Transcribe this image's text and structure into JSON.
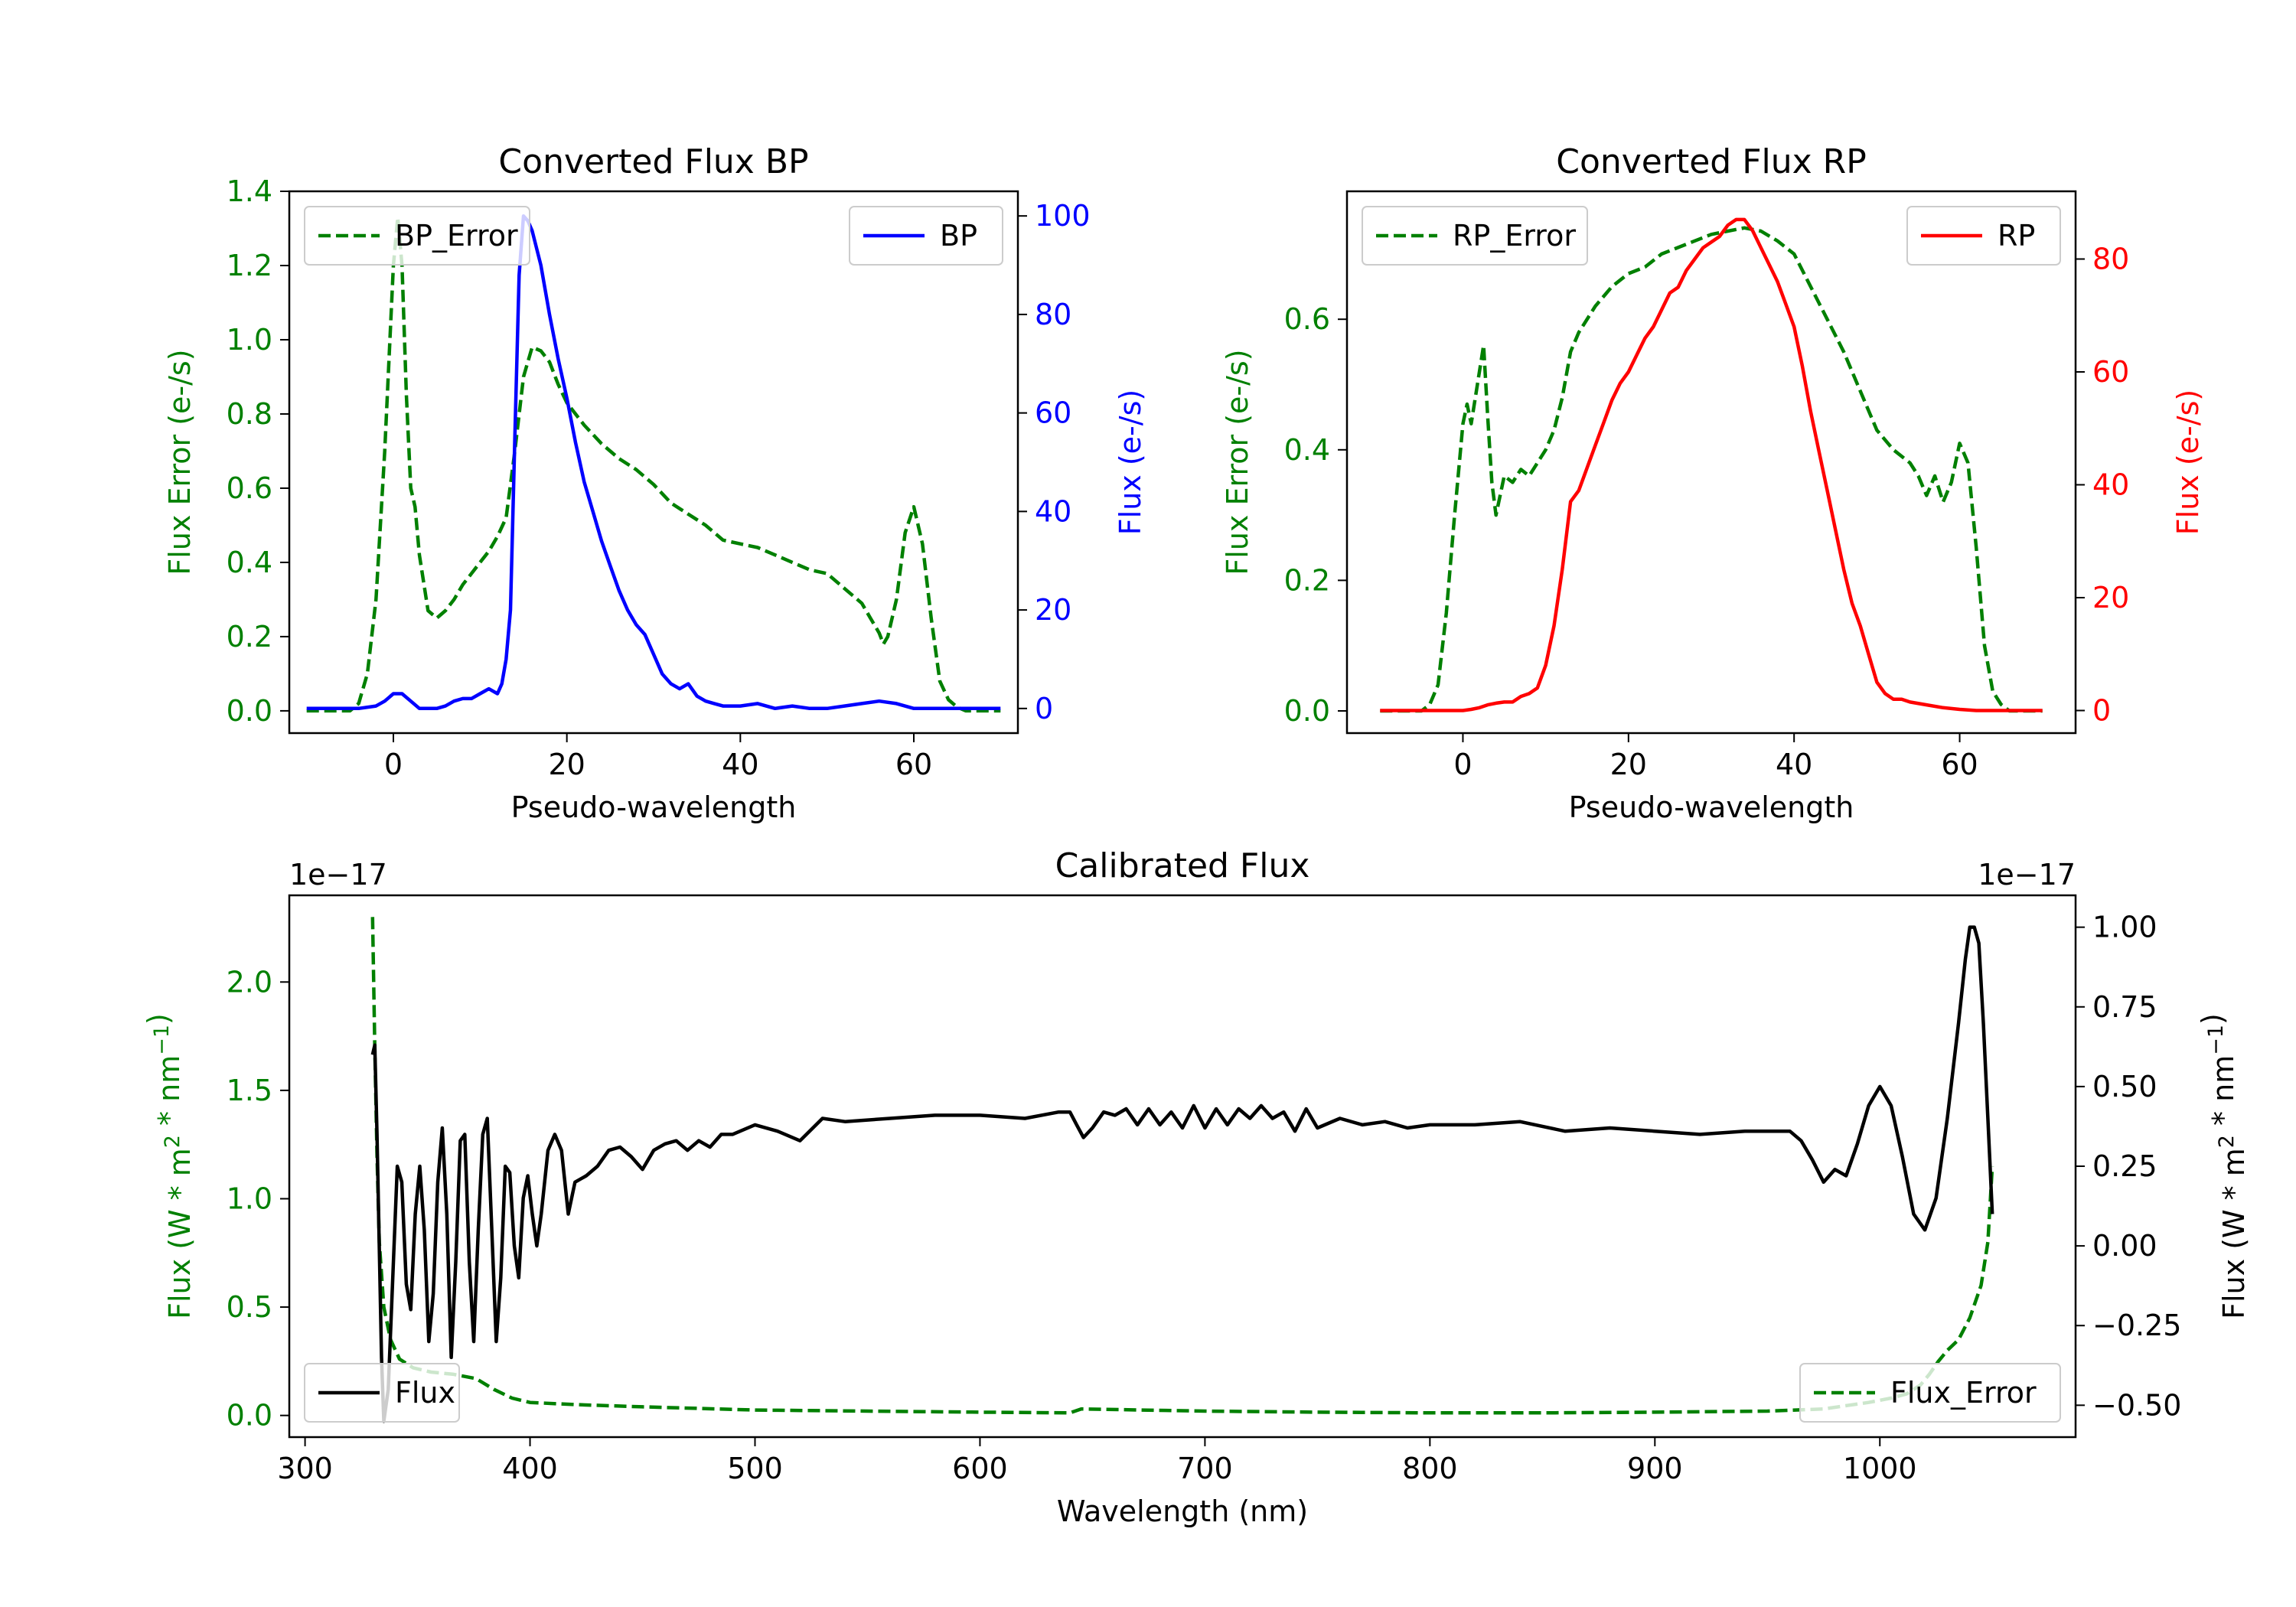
{
  "chart_data": [
    {
      "id": "bp",
      "type": "line",
      "title": "Converted Flux BP",
      "xlabel": "Pseudo-wavelength",
      "ylabel_left": "Flux Error (e-/s)",
      "ylabel_right": "Flux (e-/s)",
      "xlim": [
        -12,
        72
      ],
      "ylim_left": [
        -0.06,
        1.4
      ],
      "ylim_right": [
        -5,
        105
      ],
      "xticks": [
        0,
        20,
        40,
        60
      ],
      "xtick_labels": [
        "0",
        "20",
        "40",
        "60"
      ],
      "yticks_left": [
        0.0,
        0.2,
        0.4,
        0.6,
        0.8,
        1.0,
        1.2,
        1.4
      ],
      "ytick_labels_left": [
        "0.0",
        "0.2",
        "0.4",
        "0.6",
        "0.8",
        "1.0",
        "1.2",
        "1.4"
      ],
      "yticks_right": [
        0,
        20,
        40,
        60,
        80,
        100
      ],
      "ytick_labels_right": [
        "0",
        "20",
        "40",
        "60",
        "80",
        "100"
      ],
      "color_left": "#008000",
      "color_right": "#0000ff",
      "series": [
        {
          "name": "BP_Error",
          "axis": "left",
          "color": "#008000",
          "dash": true,
          "x": [
            -10,
            -5,
            -4,
            -3,
            -2,
            -1,
            0,
            0.5,
            1,
            1.5,
            2,
            2.5,
            3,
            4,
            5,
            6,
            7,
            8,
            9,
            10,
            11,
            12,
            13,
            14,
            15,
            16,
            17,
            18,
            19,
            20,
            22,
            24,
            26,
            28,
            30,
            32,
            34,
            36,
            38,
            40,
            42,
            44,
            46,
            48,
            50,
            52,
            54,
            55,
            56,
            56.5,
            57,
            58,
            59,
            60,
            61,
            62,
            63,
            64,
            65,
            66,
            70
          ],
          "y": [
            0.0,
            0.0,
            0.02,
            0.1,
            0.3,
            0.7,
            1.2,
            1.33,
            1.2,
            0.85,
            0.6,
            0.55,
            0.42,
            0.27,
            0.25,
            0.27,
            0.3,
            0.34,
            0.37,
            0.4,
            0.43,
            0.47,
            0.52,
            0.7,
            0.9,
            0.98,
            0.97,
            0.94,
            0.88,
            0.83,
            0.77,
            0.72,
            0.68,
            0.65,
            0.61,
            0.56,
            0.53,
            0.5,
            0.46,
            0.45,
            0.44,
            0.42,
            0.4,
            0.38,
            0.37,
            0.33,
            0.29,
            0.25,
            0.21,
            0.18,
            0.2,
            0.3,
            0.48,
            0.55,
            0.45,
            0.25,
            0.08,
            0.03,
            0.01,
            0.0,
            0.0
          ]
        },
        {
          "name": "BP",
          "axis": "right",
          "color": "#0000ff",
          "dash": false,
          "x": [
            -10,
            -6,
            -4,
            -2,
            -1,
            0,
            1,
            2,
            3,
            4,
            5,
            6,
            7,
            8,
            9,
            10,
            11,
            12,
            12.5,
            13,
            13.5,
            14,
            14.5,
            15,
            15.5,
            16,
            17,
            18,
            19,
            20,
            21,
            22,
            23,
            24,
            25,
            26,
            27,
            28,
            29,
            30,
            31,
            32,
            33,
            34,
            35,
            36,
            37,
            38,
            39,
            40,
            42,
            44,
            46,
            48,
            50,
            52,
            54,
            56,
            58,
            60,
            62,
            64,
            66,
            68,
            70
          ],
          "y": [
            0,
            0,
            0,
            0.5,
            1.5,
            3,
            3,
            1.5,
            0,
            0,
            0,
            0.5,
            1.5,
            2,
            2,
            3,
            4,
            3,
            5,
            10,
            20,
            55,
            88,
            100,
            99,
            97,
            90,
            80,
            71,
            63,
            54,
            46,
            40,
            34,
            29,
            24,
            20,
            17,
            15,
            11,
            7,
            5,
            4,
            5,
            2.5,
            1.5,
            1,
            0.5,
            0.5,
            0.5,
            1,
            0,
            0.5,
            0,
            0,
            0.5,
            1,
            1.5,
            1,
            0,
            0,
            0,
            0,
            0,
            0
          ]
        }
      ],
      "legend_left": "BP_Error",
      "legend_right": "BP"
    },
    {
      "id": "rp",
      "type": "line",
      "title": "Converted Flux RP",
      "xlabel": "Pseudo-wavelength",
      "ylabel_left": "Flux Error (e-/s)",
      "ylabel_right": "Flux (e-/s)",
      "xlim": [
        -14,
        74
      ],
      "ylim_left": [
        -0.034,
        0.796
      ],
      "ylim_right": [
        -4,
        92
      ],
      "xticks": [
        0,
        20,
        40,
        60
      ],
      "xtick_labels": [
        "0",
        "20",
        "40",
        "60"
      ],
      "yticks_left": [
        0.0,
        0.2,
        0.4,
        0.6
      ],
      "ytick_labels_left": [
        "0.0",
        "0.2",
        "0.4",
        "0.6"
      ],
      "yticks_right": [
        0,
        20,
        40,
        60,
        80
      ],
      "ytick_labels_right": [
        "0",
        "20",
        "40",
        "60",
        "80"
      ],
      "color_left": "#008000",
      "color_right": "#ff0000",
      "series": [
        {
          "name": "RP_Error",
          "axis": "left",
          "color": "#008000",
          "dash": true,
          "x": [
            -10,
            -5,
            -4,
            -3,
            -2,
            -1,
            0,
            0.5,
            1,
            1.5,
            2,
            2.5,
            3,
            3.5,
            4,
            5,
            6,
            7,
            8,
            9,
            10,
            11,
            12,
            13,
            14,
            16,
            18,
            20,
            22,
            24,
            26,
            28,
            30,
            32,
            34,
            36,
            38,
            40,
            42,
            44,
            46,
            48,
            50,
            52,
            54,
            55,
            56,
            57,
            58,
            59,
            60,
            61,
            62,
            63,
            64,
            65,
            66,
            70
          ],
          "y": [
            0.0,
            0.0,
            0.01,
            0.04,
            0.15,
            0.3,
            0.44,
            0.47,
            0.44,
            0.48,
            0.52,
            0.56,
            0.45,
            0.35,
            0.3,
            0.36,
            0.35,
            0.37,
            0.36,
            0.38,
            0.4,
            0.43,
            0.48,
            0.55,
            0.58,
            0.62,
            0.65,
            0.67,
            0.68,
            0.7,
            0.71,
            0.72,
            0.73,
            0.735,
            0.74,
            0.735,
            0.72,
            0.7,
            0.65,
            0.6,
            0.55,
            0.49,
            0.43,
            0.4,
            0.38,
            0.36,
            0.33,
            0.36,
            0.32,
            0.35,
            0.41,
            0.38,
            0.25,
            0.1,
            0.03,
            0.01,
            0.0,
            0.0
          ]
        },
        {
          "name": "RP",
          "axis": "right",
          "color": "#ff0000",
          "dash": false,
          "x": [
            -10,
            -2,
            0,
            1,
            2,
            3,
            4,
            5,
            6,
            7,
            8,
            9,
            10,
            11,
            12,
            13,
            14,
            15,
            16,
            17,
            18,
            19,
            20,
            21,
            22,
            23,
            24,
            25,
            26,
            27,
            28,
            29,
            30,
            31,
            32,
            33,
            34,
            35,
            36,
            37,
            38,
            39,
            40,
            41,
            42,
            43,
            44,
            45,
            46,
            47,
            48,
            49,
            50,
            51,
            52,
            53,
            54,
            56,
            58,
            60,
            62,
            64,
            66,
            70
          ],
          "y": [
            0,
            0,
            0,
            0.2,
            0.5,
            1,
            1.3,
            1.5,
            1.5,
            2.5,
            3,
            4,
            8,
            15,
            25,
            37,
            39,
            43,
            47,
            51,
            55,
            58,
            60,
            63,
            66,
            68,
            71,
            74,
            75,
            78,
            80,
            82,
            83,
            84,
            86,
            87,
            87,
            85,
            82,
            79,
            76,
            72,
            68,
            61,
            53,
            46,
            39,
            32,
            25,
            19,
            15,
            10,
            5,
            3,
            2,
            2,
            1.5,
            1,
            0.5,
            0.2,
            0,
            0,
            0,
            0
          ]
        }
      ],
      "legend_left": "RP_Error",
      "legend_right": "RP"
    },
    {
      "id": "cal",
      "type": "line",
      "title": "Calibrated Flux",
      "xlabel": "Wavelength (nm)",
      "ylabel_left": "Flux (W * m² * nm⁻¹)",
      "ylabel_right": "Flux (W * m² * nm⁻¹)",
      "ylabel_left_main": "Flux (W * m",
      "ylabel_left_sup1": "2",
      "ylabel_left_mid": " * nm",
      "ylabel_left_sup2": "−1",
      "ylabel_left_end": ")",
      "xlim": [
        293,
        1087
      ],
      "ylim_left": [
        -0.1,
        2.4
      ],
      "ylim_right": [
        -0.6,
        1.1
      ],
      "offset_left": "1e−17",
      "offset_right": "1e−17",
      "xticks": [
        300,
        400,
        500,
        600,
        700,
        800,
        900,
        1000
      ],
      "xtick_labels": [
        "300",
        "400",
        "500",
        "600",
        "700",
        "800",
        "900",
        "1000"
      ],
      "yticks_left": [
        0.0,
        0.5,
        1.0,
        1.5,
        2.0
      ],
      "ytick_labels_left": [
        "0.0",
        "0.5",
        "1.0",
        "1.5",
        "2.0"
      ],
      "yticks_right": [
        -0.5,
        -0.25,
        0.0,
        0.25,
        0.5,
        0.75,
        1.0
      ],
      "ytick_labels_right": [
        "−0.50",
        "−0.25",
        "0.00",
        "0.25",
        "0.50",
        "0.75",
        "1.00"
      ],
      "color_left": "#008000",
      "color_right": "#000000",
      "series": [
        {
          "name": "Flux_Error",
          "axis": "left",
          "color": "#008000",
          "dash": true,
          "x": [
            330,
            331,
            332,
            333,
            335,
            338,
            342,
            348,
            356,
            366,
            376,
            384,
            392,
            400,
            420,
            450,
            500,
            550,
            600,
            640,
            645,
            700,
            750,
            800,
            850,
            900,
            950,
            975,
            985,
            995,
            1005,
            1012,
            1018,
            1022,
            1026,
            1030,
            1035,
            1040,
            1045,
            1048,
            1050
          ],
          "y": [
            2.3,
            1.7,
            1.2,
            0.8,
            0.5,
            0.35,
            0.26,
            0.22,
            0.2,
            0.19,
            0.17,
            0.12,
            0.08,
            0.06,
            0.05,
            0.04,
            0.025,
            0.02,
            0.015,
            0.012,
            0.03,
            0.02,
            0.015,
            0.012,
            0.012,
            0.015,
            0.02,
            0.03,
            0.045,
            0.06,
            0.08,
            0.1,
            0.14,
            0.19,
            0.25,
            0.3,
            0.35,
            0.45,
            0.6,
            0.8,
            1.15
          ]
        },
        {
          "name": "Flux",
          "axis": "right",
          "color": "#000000",
          "dash": false,
          "x": [
            330,
            331,
            332,
            334,
            335,
            337,
            339,
            341,
            343,
            345,
            347,
            349,
            351,
            353,
            355,
            357,
            359,
            361,
            363,
            365,
            367,
            369,
            371,
            373,
            375,
            377,
            379,
            381,
            383,
            385,
            387,
            389,
            391,
            393,
            395,
            397,
            399,
            401,
            403,
            405,
            408,
            411,
            414,
            417,
            420,
            425,
            430,
            435,
            440,
            445,
            450,
            455,
            460,
            465,
            470,
            475,
            480,
            485,
            490,
            500,
            510,
            520,
            530,
            540,
            560,
            580,
            600,
            620,
            635,
            640,
            643,
            646,
            650,
            655,
            660,
            665,
            670,
            675,
            680,
            685,
            690,
            695,
            700,
            705,
            710,
            715,
            720,
            725,
            730,
            735,
            740,
            745,
            750,
            760,
            770,
            780,
            790,
            800,
            820,
            840,
            860,
            880,
            900,
            920,
            940,
            950,
            955,
            960,
            965,
            970,
            975,
            980,
            985,
            990,
            995,
            1000,
            1005,
            1010,
            1015,
            1020,
            1025,
            1030,
            1035,
            1038,
            1040,
            1042,
            1044,
            1046,
            1048,
            1050
          ],
          "y": [
            0.6,
            0.63,
            0.35,
            -0.35,
            -0.55,
            -0.45,
            -0.1,
            0.25,
            0.2,
            -0.12,
            -0.2,
            0.1,
            0.25,
            0.05,
            -0.3,
            -0.15,
            0.2,
            0.37,
            0.1,
            -0.35,
            -0.05,
            0.33,
            0.35,
            -0.05,
            -0.3,
            0.05,
            0.35,
            0.4,
            0.05,
            -0.3,
            -0.1,
            0.25,
            0.23,
            0.0,
            -0.1,
            0.15,
            0.22,
            0.1,
            0.0,
            0.1,
            0.3,
            0.35,
            0.3,
            0.1,
            0.2,
            0.22,
            0.25,
            0.3,
            0.31,
            0.28,
            0.24,
            0.3,
            0.32,
            0.33,
            0.3,
            0.33,
            0.31,
            0.35,
            0.35,
            0.38,
            0.36,
            0.33,
            0.4,
            0.39,
            0.4,
            0.41,
            0.41,
            0.4,
            0.42,
            0.42,
            0.38,
            0.34,
            0.37,
            0.42,
            0.41,
            0.43,
            0.38,
            0.43,
            0.38,
            0.42,
            0.37,
            0.44,
            0.37,
            0.43,
            0.38,
            0.43,
            0.4,
            0.44,
            0.4,
            0.42,
            0.36,
            0.43,
            0.37,
            0.4,
            0.38,
            0.39,
            0.37,
            0.38,
            0.38,
            0.39,
            0.36,
            0.37,
            0.36,
            0.35,
            0.36,
            0.36,
            0.36,
            0.36,
            0.33,
            0.27,
            0.2,
            0.24,
            0.22,
            0.32,
            0.44,
            0.5,
            0.44,
            0.28,
            0.1,
            0.05,
            0.15,
            0.4,
            0.7,
            0.9,
            1.0,
            1.0,
            0.95,
            0.7,
            0.4,
            0.1
          ]
        }
      ],
      "legend_left": "Flux",
      "legend_right": "Flux_Error"
    }
  ]
}
